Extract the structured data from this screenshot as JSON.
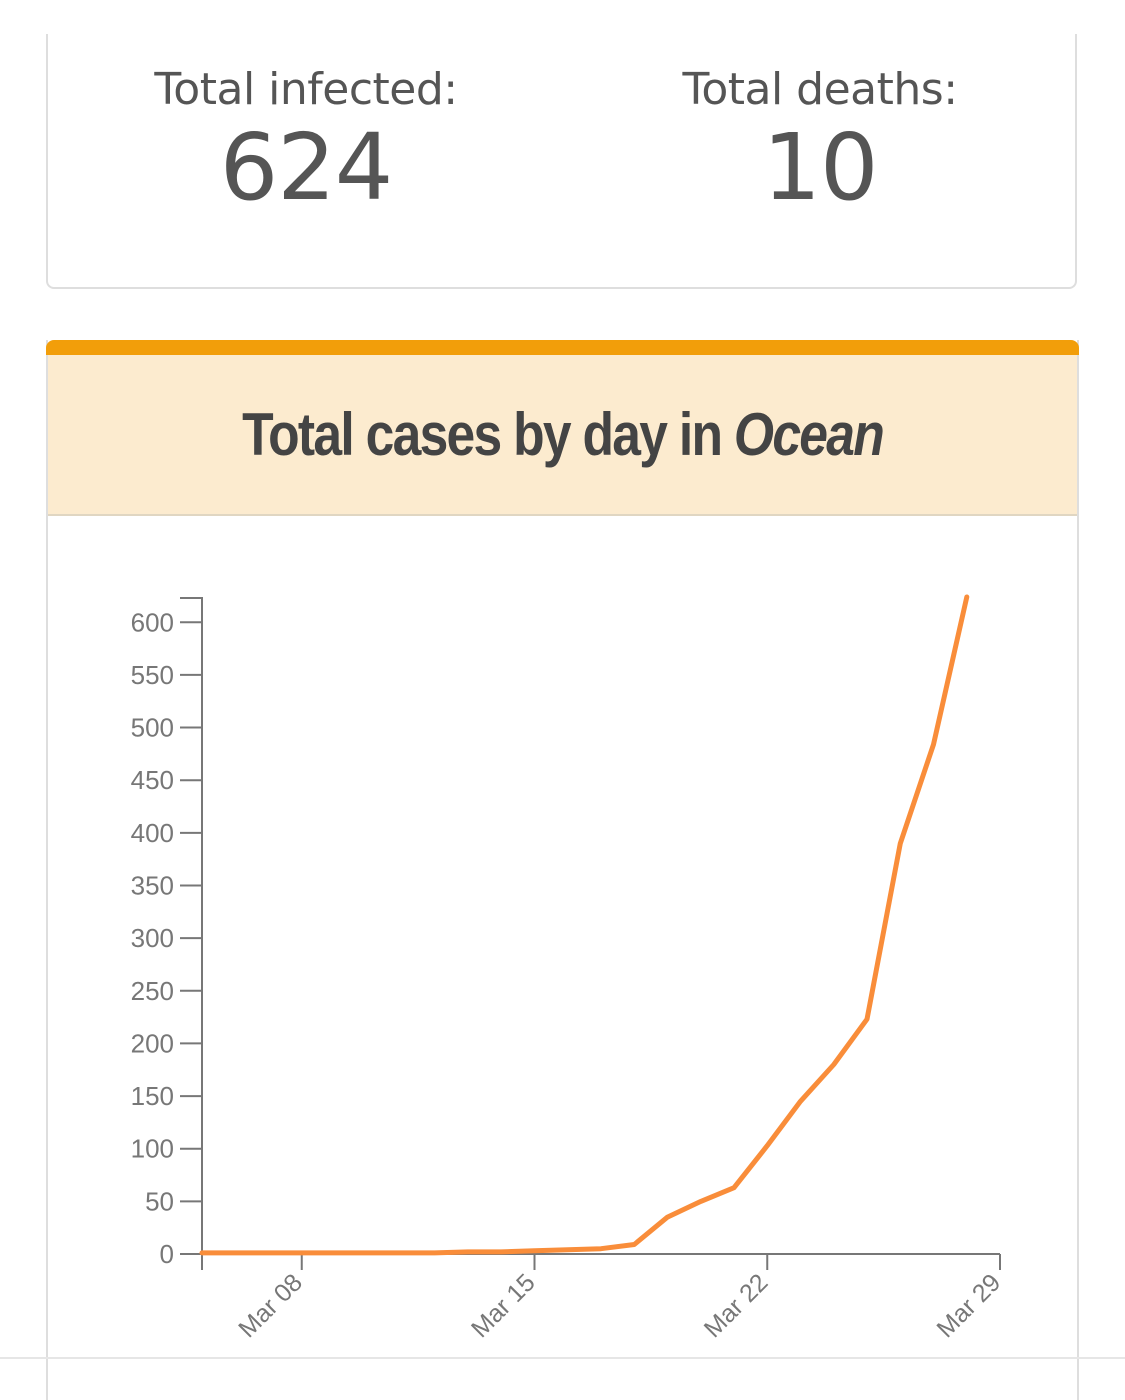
{
  "stats": {
    "infected_label": "Total infected:",
    "infected_value": "624",
    "deaths_label": "Total deaths:",
    "deaths_value": "10"
  },
  "chart_header": {
    "title_prefix": "Total cases by day in ",
    "title_place": "Ocean"
  },
  "colors": {
    "accent_bar": "#f29e0a",
    "header_bg": "#fcebcf",
    "line": "#f98d3a",
    "axis": "#777777"
  },
  "chart_data": {
    "type": "line",
    "title": "Total cases by day in Ocean",
    "xlabel": "",
    "ylabel": "",
    "x_tick_labels": [
      "Mar 08",
      "Mar 15",
      "Mar 22",
      "Mar 29"
    ],
    "y_tick_labels": [
      "0",
      "50",
      "100",
      "150",
      "200",
      "250",
      "300",
      "350",
      "400",
      "450",
      "500",
      "550",
      "600"
    ],
    "ylim": [
      0,
      624
    ],
    "xlim": [
      "2020-03-05",
      "2020-03-29"
    ],
    "grid": false,
    "legend": "none",
    "series": [
      {
        "x": [
          "2020-03-05",
          "2020-03-06",
          "2020-03-07",
          "2020-03-08",
          "2020-03-09",
          "2020-03-10",
          "2020-03-11",
          "2020-03-12",
          "2020-03-13",
          "2020-03-14",
          "2020-03-15",
          "2020-03-16",
          "2020-03-17",
          "2020-03-18",
          "2020-03-19",
          "2020-03-20",
          "2020-03-21",
          "2020-03-22",
          "2020-03-23",
          "2020-03-24",
          "2020-03-25",
          "2020-03-26",
          "2020-03-27",
          "2020-03-28"
        ],
        "values": [
          1,
          1,
          1,
          1,
          1,
          1,
          1,
          1,
          2,
          2,
          3,
          4,
          5,
          9,
          35,
          50,
          63,
          103,
          145,
          180,
          223,
          390,
          484,
          624
        ]
      }
    ]
  }
}
